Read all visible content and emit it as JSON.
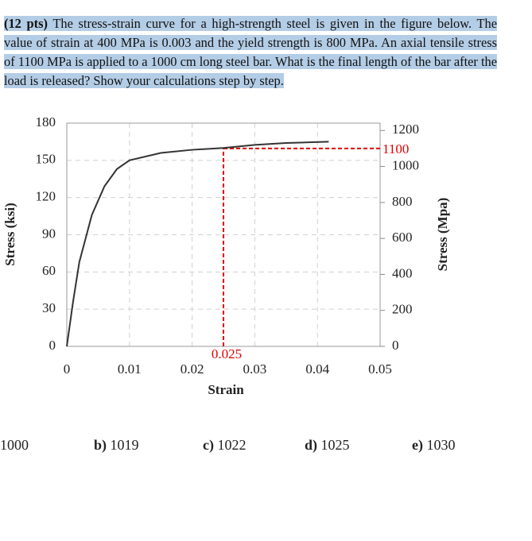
{
  "question": {
    "points": "(12 pts)",
    "text": "The stress-strain curve for a high-strength steel is given in the figure below. The value of strain at 400 MPa is 0.003 and the yield strength is 800 MPa. An axial tensile stress of 1100 MPa is applied to a 1000 cm long steel bar. What is the final length of the bar after the load is released? Show your calculations step by step."
  },
  "chart_data": {
    "type": "line",
    "xlabel": "Strain",
    "ylabel": "Stress (ksi)",
    "y2label": "Stress (Mpa)",
    "x": [
      0,
      0.001,
      0.002,
      0.004,
      0.006,
      0.008,
      0.01,
      0.015,
      0.02,
      0.025,
      0.03,
      0.035,
      0.0418
    ],
    "series": [
      {
        "color": "#333333",
        "values": [
          0,
          36,
          68,
          106,
          129,
          143,
          150,
          156,
          158.5,
          160,
          162.5,
          164,
          165
        ]
      }
    ],
    "xlim": [
      0,
      0.05
    ],
    "xticks": [
      0,
      0.01,
      0.02,
      0.03,
      0.04,
      0.05
    ],
    "ylim": [
      0,
      180
    ],
    "yticks": [
      0,
      30,
      60,
      90,
      120,
      150,
      180
    ],
    "y2lim": [
      0,
      1241
    ],
    "y2ticks": [
      0,
      200,
      400,
      600,
      800,
      1000,
      1200
    ],
    "grid": true,
    "guide": {
      "x": 0.025,
      "y2": 1100,
      "color": "#e00000"
    }
  },
  "options": [
    {
      "text": "1000"
    },
    {
      "label": "b)",
      "text": "1019"
    },
    {
      "label": "c)",
      "text": "1022"
    },
    {
      "label": "d)",
      "text": "1025"
    },
    {
      "label": "e)",
      "text": "1030"
    }
  ]
}
